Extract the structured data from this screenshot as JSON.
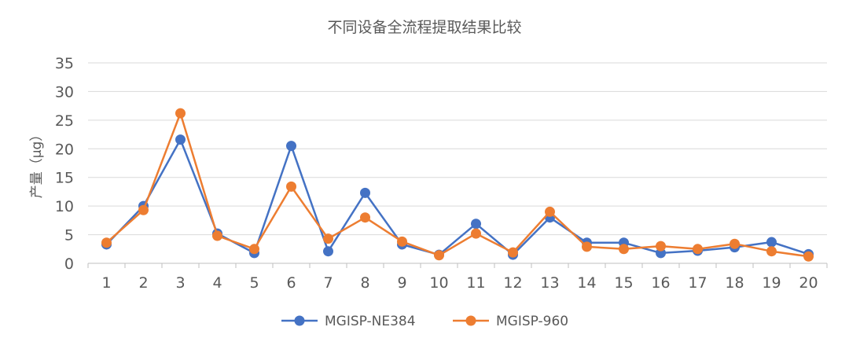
{
  "chart_data": {
    "type": "line",
    "title": "不同设备全流程提取结果比较",
    "xlabel": "",
    "ylabel": "产量（μg）",
    "categories": [
      "1",
      "2",
      "3",
      "4",
      "5",
      "6",
      "7",
      "8",
      "9",
      "10",
      "11",
      "12",
      "13",
      "14",
      "15",
      "16",
      "17",
      "18",
      "19",
      "20"
    ],
    "ylim": [
      0,
      35
    ],
    "yticks": [
      0,
      5,
      10,
      15,
      20,
      25,
      30,
      35
    ],
    "grid": true,
    "legend_position": "bottom",
    "series": [
      {
        "name": "MGISP-NE384",
        "color": "#4472C4",
        "values": [
          3.3,
          10.0,
          21.6,
          5.2,
          1.8,
          20.5,
          2.1,
          12.3,
          3.3,
          1.5,
          6.9,
          1.5,
          8.0,
          3.6,
          3.6,
          1.8,
          2.2,
          2.8,
          3.7,
          1.6
        ]
      },
      {
        "name": "MGISP-960",
        "color": "#ED7D31",
        "values": [
          3.6,
          9.3,
          26.2,
          4.8,
          2.5,
          13.4,
          4.3,
          8.0,
          3.8,
          1.4,
          5.2,
          1.9,
          9.0,
          2.9,
          2.5,
          3.0,
          2.5,
          3.4,
          2.1,
          1.2
        ]
      }
    ]
  }
}
